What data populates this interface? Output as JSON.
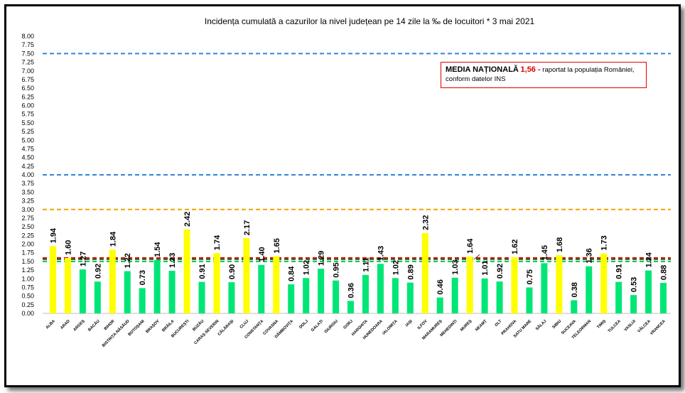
{
  "chart_data": {
    "type": "bar",
    "title": "Incidența cumulată a cazurilor la nivel județean pe 14 zile la ‰ de locuitori *  3 mai 2021",
    "xlabel": "",
    "ylabel": "",
    "ylim": [
      0,
      8
    ],
    "ytick_labels": [
      "0.00",
      "0.25",
      "0.50",
      "0.75",
      "1.00",
      "1.25",
      "1.50",
      "1.75",
      "2.00",
      "2.25",
      "2.50",
      "2.75",
      "3.00",
      "3.25",
      "3.50",
      "3.75",
      "4.00",
      "4.25",
      "4.50",
      "4.75",
      "5.00",
      "5.25",
      "5.50",
      "5.75",
      "6.00",
      "6.25",
      "6.50",
      "6.75",
      "7.00",
      "7.25",
      "7.50",
      "7.75",
      "8.00"
    ],
    "grid": false,
    "categories": [
      "ALBA",
      "ARAD",
      "ARGEȘ",
      "BACĂU",
      "BIHOR",
      "BISTRIȚA-NĂSĂUD",
      "BOTOȘANI",
      "BRAȘOV",
      "BRĂILA",
      "BUCUREȘTI",
      "BUZĂU",
      "CARAȘ-SEVERIN",
      "CĂLĂRAȘI",
      "CLUJ",
      "CONSTANȚA",
      "COVASNA",
      "DÂMBOVIȚA",
      "DOLJ",
      "GALAȚI",
      "GIURGIU",
      "GORJ",
      "HARGHITA",
      "HUNEDOARA",
      "IALOMIȚA",
      "IAȘI",
      "ILFOV",
      "MARAMUREȘ",
      "MEHEDINȚI",
      "MUREȘ",
      "NEAMȚ",
      "OLT",
      "PRAHOVA",
      "SATU MARE",
      "SĂLAJ",
      "SIBIU",
      "SUCEAVA",
      "TELEORMAN",
      "TIMIȘ",
      "TULCEA",
      "VASLUI",
      "VÂLCEA",
      "VRANCEA"
    ],
    "values": [
      1.94,
      1.6,
      1.27,
      0.92,
      1.84,
      1.22,
      0.73,
      1.54,
      1.23,
      2.42,
      0.91,
      1.74,
      0.9,
      2.17,
      1.4,
      1.65,
      0.84,
      1.02,
      1.29,
      0.95,
      0.36,
      1.11,
      1.43,
      1.02,
      0.89,
      2.32,
      0.46,
      1.03,
      1.64,
      1.01,
      0.92,
      1.62,
      0.75,
      1.45,
      1.68,
      0.38,
      1.36,
      1.73,
      0.91,
      0.53,
      1.24,
      0.88
    ],
    "value_labels": [
      "1.94",
      "1.60",
      "1.27",
      "0.92",
      "1.84",
      "1.22",
      "0.73",
      "1.54",
      "1.23",
      "2.42",
      "0.91",
      "1.74",
      "0.90",
      "2.17",
      "1.40",
      "1.65",
      "0.84",
      "1.02",
      "1.29",
      "0.95",
      "0.36",
      "1.11",
      "1.43",
      "1.02",
      "0.89",
      "2.32",
      "0.46",
      "1.03",
      "1.64",
      "1.01",
      "0.92",
      "1.62",
      "0.75",
      "1.45",
      "1.68",
      "0.38",
      "1.36",
      "1.73",
      "0.91",
      "0.53",
      "1.24",
      "0.88"
    ],
    "bar_colors": {
      "above": "#ffff00",
      "below": "#00e676"
    },
    "reference_lines": [
      {
        "value": 7.5,
        "color": "#2e86de",
        "style": "dashed"
      },
      {
        "value": 4.0,
        "color": "#2e86de",
        "style": "dashed"
      },
      {
        "value": 3.0,
        "color": "#f5a000",
        "style": "dashed"
      },
      {
        "value": 1.6,
        "color": "#e00000",
        "style": "dashed"
      },
      {
        "value": 1.56,
        "color": "#2e7d32",
        "style": "dashed"
      },
      {
        "value": 1.5,
        "color": "#00c853",
        "style": "dashed"
      }
    ],
    "annotation": {
      "label": "MEDIA NAȚIONALĂ",
      "value": "1,56 -",
      "text": "raportat la populația României,",
      "text2": "conform datelor INS",
      "border_color": "#e00000",
      "value_color": "#e00000"
    }
  }
}
